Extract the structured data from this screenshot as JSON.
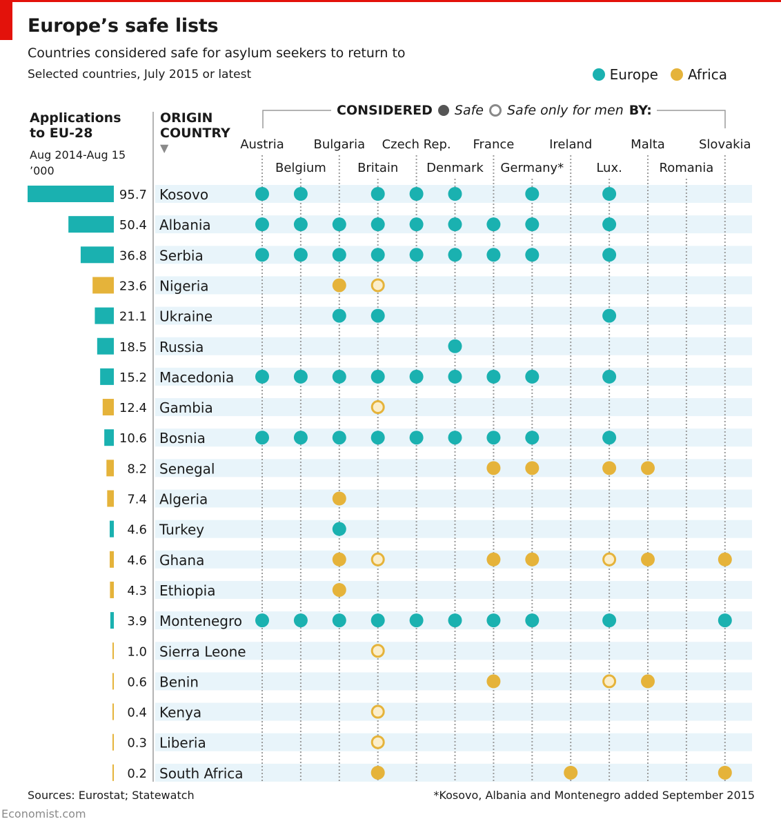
{
  "header": {
    "title": "Europe’s safe lists",
    "subtitle": "Countries considered safe for asylum seekers to return to",
    "subtitle2": "Selected countries, July 2015 or latest"
  },
  "legend": {
    "europe": "Europe",
    "africa": "Africa"
  },
  "colors": {
    "europe": "#1ab1b0",
    "africa": "#e5b33a",
    "row_band": "#e8f4fa",
    "dotted_line": "#9a9a9a",
    "accent_red": "#e3120b"
  },
  "columns_header": {
    "applications_line1": "Applications",
    "applications_line2": "to EU-28",
    "applications_period": "Aug 2014-Aug 15",
    "applications_unit": "’000",
    "origin_line1": "ORIGIN",
    "origin_line2": "COUNTRY",
    "origin_marker": "▼",
    "considered_word": "CONSIDERED",
    "safe_label": "Safe",
    "men_label": "Safe only for men",
    "by_word": "BY:"
  },
  "chart_data": {
    "type": "table",
    "bar_max": 95.7,
    "considering_countries": [
      "Austria",
      "Belgium",
      "Bulgaria",
      "Britain",
      "Czech Rep.",
      "Denmark",
      "France",
      "Germany*",
      "Ireland",
      "Lux.",
      "Malta",
      "Romania",
      "Slovakia"
    ],
    "rows": [
      {
        "country": "Kosovo",
        "region": "europe",
        "applications": 95.7,
        "safe": [
          "Austria",
          "Belgium",
          "Britain",
          "Czech Rep.",
          "Denmark",
          "Germany*",
          "Lux."
        ],
        "men": []
      },
      {
        "country": "Albania",
        "region": "europe",
        "applications": 50.4,
        "safe": [
          "Austria",
          "Belgium",
          "Bulgaria",
          "Britain",
          "Czech Rep.",
          "Denmark",
          "France",
          "Germany*",
          "Lux."
        ],
        "men": []
      },
      {
        "country": "Serbia",
        "region": "europe",
        "applications": 36.8,
        "safe": [
          "Austria",
          "Belgium",
          "Bulgaria",
          "Britain",
          "Czech Rep.",
          "Denmark",
          "France",
          "Germany*",
          "Lux."
        ],
        "men": []
      },
      {
        "country": "Nigeria",
        "region": "africa",
        "applications": 23.6,
        "safe": [
          "Bulgaria"
        ],
        "men": [
          "Britain"
        ]
      },
      {
        "country": "Ukraine",
        "region": "europe",
        "applications": 21.1,
        "safe": [
          "Bulgaria",
          "Britain",
          "Lux."
        ],
        "men": []
      },
      {
        "country": "Russia",
        "region": "europe",
        "applications": 18.5,
        "safe": [
          "Denmark"
        ],
        "men": []
      },
      {
        "country": "Macedonia",
        "region": "europe",
        "applications": 15.2,
        "safe": [
          "Austria",
          "Belgium",
          "Bulgaria",
          "Britain",
          "Czech Rep.",
          "Denmark",
          "France",
          "Germany*",
          "Lux."
        ],
        "men": []
      },
      {
        "country": "Gambia",
        "region": "africa",
        "applications": 12.4,
        "safe": [],
        "men": [
          "Britain"
        ]
      },
      {
        "country": "Bosnia",
        "region": "europe",
        "applications": 10.6,
        "safe": [
          "Austria",
          "Belgium",
          "Bulgaria",
          "Britain",
          "Czech Rep.",
          "Denmark",
          "France",
          "Germany*",
          "Lux."
        ],
        "men": []
      },
      {
        "country": "Senegal",
        "region": "africa",
        "applications": 8.2,
        "safe": [
          "France",
          "Germany*",
          "Lux.",
          "Malta"
        ],
        "men": []
      },
      {
        "country": "Algeria",
        "region": "africa",
        "applications": 7.4,
        "safe": [
          "Bulgaria"
        ],
        "men": []
      },
      {
        "country": "Turkey",
        "region": "europe",
        "applications": 4.6,
        "safe": [
          "Bulgaria"
        ],
        "men": []
      },
      {
        "country": "Ghana",
        "region": "africa",
        "applications": 4.6,
        "safe": [
          "Bulgaria",
          "France",
          "Germany*",
          "Malta",
          "Slovakia"
        ],
        "men": [
          "Britain",
          "Lux."
        ]
      },
      {
        "country": "Ethiopia",
        "region": "africa",
        "applications": 4.3,
        "safe": [
          "Bulgaria"
        ],
        "men": []
      },
      {
        "country": "Montenegro",
        "region": "europe",
        "applications": 3.9,
        "safe": [
          "Austria",
          "Belgium",
          "Bulgaria",
          "Britain",
          "Czech Rep.",
          "Denmark",
          "France",
          "Germany*",
          "Lux.",
          "Slovakia"
        ],
        "men": []
      },
      {
        "country": "Sierra Leone",
        "region": "africa",
        "applications": 1.0,
        "safe": [],
        "men": [
          "Britain"
        ]
      },
      {
        "country": "Benin",
        "region": "africa",
        "applications": 0.6,
        "safe": [
          "France",
          "Malta"
        ],
        "men": [
          "Lux."
        ]
      },
      {
        "country": "Kenya",
        "region": "africa",
        "applications": 0.4,
        "safe": [],
        "men": [
          "Britain"
        ]
      },
      {
        "country": "Liberia",
        "region": "africa",
        "applications": 0.3,
        "safe": [],
        "men": [
          "Britain"
        ]
      },
      {
        "country": "South Africa",
        "region": "africa",
        "applications": 0.2,
        "safe": [
          "Britain",
          "Ireland",
          "Slovakia"
        ],
        "men": []
      }
    ]
  },
  "footer": {
    "sources": "Sources: Eurostat; Statewatch",
    "footnote": "*Kosovo, Albania and Montenegro added September 2015",
    "brand": "Economist.com"
  }
}
